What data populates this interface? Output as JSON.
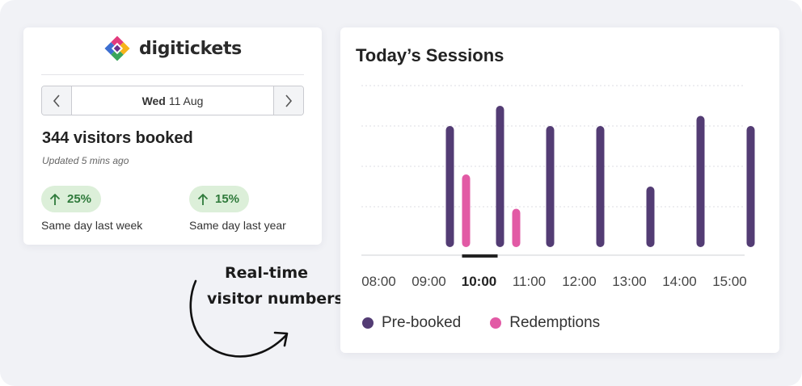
{
  "brand": {
    "name": "digitickets",
    "logo_icon": "diamond-logo-icon"
  },
  "date_nav": {
    "day": "Wed",
    "date": "11 Aug",
    "prev_icon": "chevron-left-icon",
    "next_icon": "chevron-right-icon"
  },
  "summary": {
    "visitors_text": "344 visitors booked",
    "updated_text": "Updated 5 mins ago"
  },
  "stats": [
    {
      "value": "25%",
      "label": "Same day last week",
      "icon": "arrow-up-icon"
    },
    {
      "value": "15%",
      "label": "Same day last year",
      "icon": "arrow-up-icon"
    }
  ],
  "annotation": {
    "line1": "Real-time",
    "line2": "visitor numbers",
    "icon": "curved-arrow-icon"
  },
  "colors": {
    "prebooked": "#533c74",
    "redemptions": "#e25aa5",
    "pill_bg": "#dcefd9",
    "pill_text": "#2f7a3b"
  },
  "chart_data": {
    "type": "bar",
    "title": "Today’s Sessions",
    "categories": [
      "08:00",
      "09:00",
      "10:00",
      "11:00",
      "12:00",
      "13:00",
      "14:00",
      "15:00"
    ],
    "selected_category": "10:00",
    "series": [
      {
        "name": "Pre-booked",
        "values": [
          null,
          60,
          70,
          60,
          60,
          30,
          65,
          60
        ]
      },
      {
        "name": "Redemptions",
        "values": [
          null,
          36,
          19,
          null,
          null,
          null,
          null,
          null
        ]
      }
    ],
    "ylim": [
      0,
      80
    ],
    "grid": true,
    "legend": "bottom-left"
  }
}
